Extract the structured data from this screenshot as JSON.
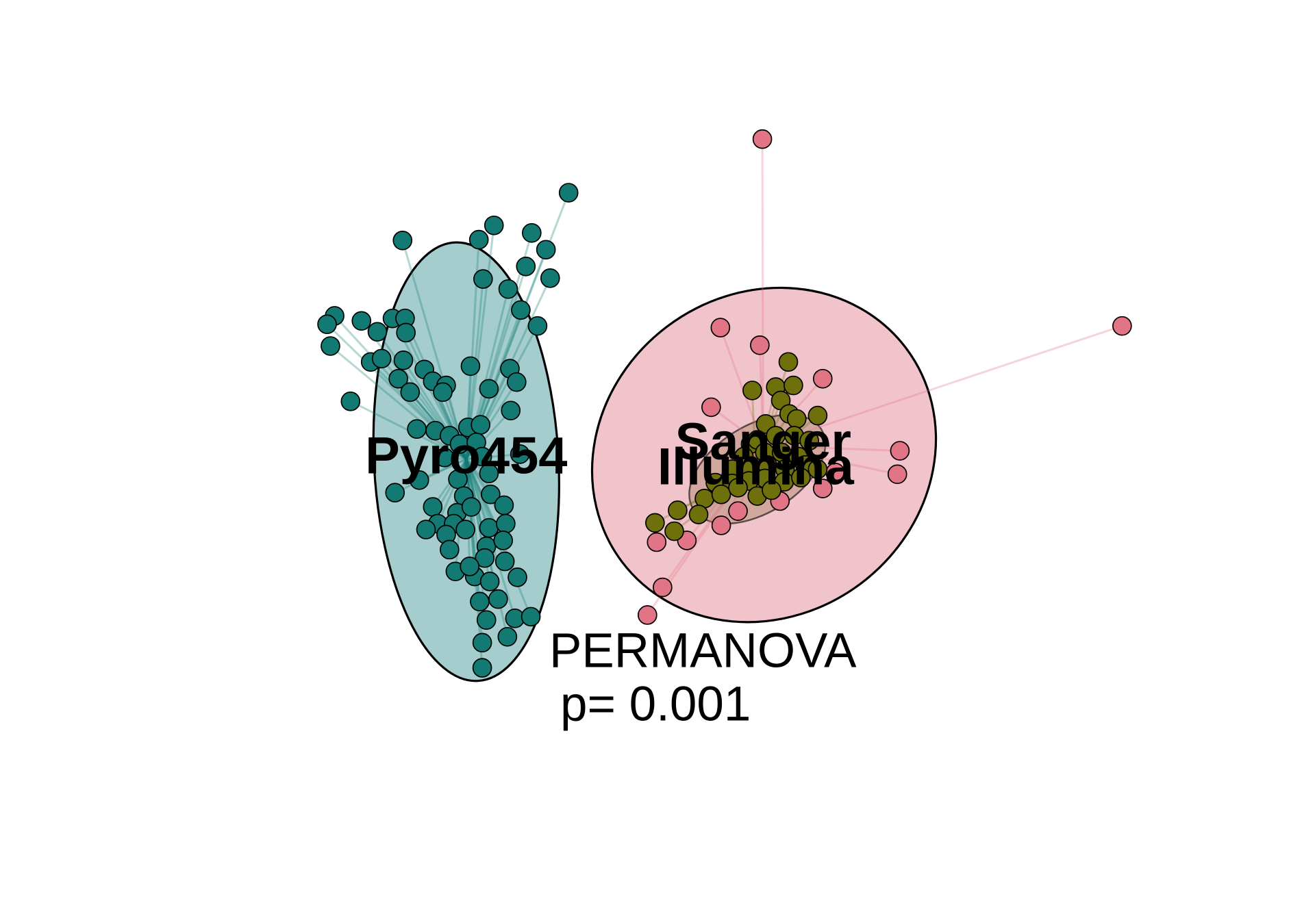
{
  "chart_data": {
    "type": "scatter",
    "title": "",
    "xlabel": "",
    "ylabel": "",
    "annotation": {
      "line1": "PERMANOVA",
      "line2": "p= 0.001"
    },
    "xlim": [
      0,
      1568
    ],
    "ylim": [
      1098,
      0
    ],
    "series": [
      {
        "name": "Pyro454",
        "color": "#127A73",
        "fill": "#8CBFBF",
        "centroid": [
          556,
          548
        ],
        "ellipse": {
          "cx": 556,
          "cy": 551,
          "rx": 110,
          "ry": 262,
          "angle": -3
        },
        "points": [
          [
            678,
            230
          ],
          [
            589,
            269
          ],
          [
            571,
            286
          ],
          [
            634,
            278
          ],
          [
            651,
            298
          ],
          [
            480,
            287
          ],
          [
            627,
            318
          ],
          [
            656,
            332
          ],
          [
            576,
            333
          ],
          [
            606,
            345
          ],
          [
            621,
            370
          ],
          [
            641,
            389
          ],
          [
            399,
            377
          ],
          [
            390,
            387
          ],
          [
            431,
            383
          ],
          [
            468,
            380
          ],
          [
            483,
            380
          ],
          [
            450,
            396
          ],
          [
            484,
            397
          ],
          [
            394,
            413
          ],
          [
            442,
            432
          ],
          [
            455,
            428
          ],
          [
            481,
            430
          ],
          [
            506,
            441
          ],
          [
            561,
            437
          ],
          [
            608,
            440
          ],
          [
            475,
            452
          ],
          [
            516,
            455
          ],
          [
            532,
            460
          ],
          [
            616,
            456
          ],
          [
            489,
            468
          ],
          [
            528,
            468
          ],
          [
            583,
            464
          ],
          [
            418,
            479
          ],
          [
            609,
            490
          ],
          [
            519,
            514
          ],
          [
            558,
            510
          ],
          [
            573,
            507
          ],
          [
            497,
            512
          ],
          [
            536,
            520
          ],
          [
            548,
            530
          ],
          [
            568,
            528
          ],
          [
            530,
            546
          ],
          [
            575,
            545
          ],
          [
            620,
            542
          ],
          [
            546,
            572
          ],
          [
            583,
            565
          ],
          [
            500,
            573
          ],
          [
            471,
            588
          ],
          [
            553,
            592
          ],
          [
            585,
            590
          ],
          [
            516,
            605
          ],
          [
            545,
            612
          ],
          [
            562,
            605
          ],
          [
            601,
            603
          ],
          [
            522,
            625
          ],
          [
            541,
            625
          ],
          [
            583,
            630
          ],
          [
            603,
            625
          ],
          [
            508,
            632
          ],
          [
            532,
            638
          ],
          [
            555,
            632
          ],
          [
            580,
            652
          ],
          [
            600,
            645
          ],
          [
            536,
            656
          ],
          [
            578,
            666
          ],
          [
            602,
            670
          ],
          [
            543,
            682
          ],
          [
            566,
            688
          ],
          [
            584,
            694
          ],
          [
            617,
            689
          ],
          [
            560,
            676
          ],
          [
            572,
            718
          ],
          [
            594,
            715
          ],
          [
            614,
            738
          ],
          [
            633,
            736
          ],
          [
            580,
            740
          ],
          [
            605,
            760
          ],
          [
            575,
            767
          ],
          [
            575,
            797
          ]
        ]
      },
      {
        "name": "Sanger",
        "color": "#E17586",
        "fill": "#EEB9C2",
        "centroid": [
          910,
          532
        ],
        "ellipse": {
          "cx": 911,
          "cy": 543,
          "rx": 212,
          "ry": 192,
          "angle": -37
        },
        "points": [
          [
            909,
            166
          ],
          [
            1338,
            389
          ],
          [
            859,
            391
          ],
          [
            906,
            412
          ],
          [
            981,
            452
          ],
          [
            848,
            486
          ],
          [
            1073,
            538
          ],
          [
            1070,
            566
          ],
          [
            996,
            564
          ],
          [
            981,
            583
          ],
          [
            930,
            598
          ],
          [
            880,
            610
          ],
          [
            860,
            627
          ],
          [
            783,
            647
          ],
          [
            819,
            645
          ],
          [
            790,
            701
          ],
          [
            772,
            734
          ]
        ]
      },
      {
        "name": "Illumina",
        "color": "#6E700C",
        "fill": "#B68F7A",
        "centroid": [
          901,
          560
        ],
        "ellipse": {
          "cx": 903,
          "cy": 560,
          "rx": 90,
          "ry": 52,
          "angle": -32
        },
        "points": [
          [
            940,
            432
          ],
          [
            897,
            466
          ],
          [
            925,
            462
          ],
          [
            946,
            460
          ],
          [
            931,
            478
          ],
          [
            941,
            494
          ],
          [
            975,
            496
          ],
          [
            913,
            506
          ],
          [
            950,
            500
          ],
          [
            895,
            530
          ],
          [
            903,
            525
          ],
          [
            925,
            520
          ],
          [
            947,
            520
          ],
          [
            965,
            526
          ],
          [
            887,
            545
          ],
          [
            912,
            540
          ],
          [
            932,
            540
          ],
          [
            952,
            545
          ],
          [
            873,
            560
          ],
          [
            895,
            560
          ],
          [
            915,
            555
          ],
          [
            936,
            560
          ],
          [
            960,
            555
          ],
          [
            975,
            560
          ],
          [
            853,
            576
          ],
          [
            873,
            577
          ],
          [
            893,
            574
          ],
          [
            912,
            571
          ],
          [
            935,
            575
          ],
          [
            955,
            570
          ],
          [
            840,
            595
          ],
          [
            860,
            590
          ],
          [
            880,
            582
          ],
          [
            903,
            592
          ],
          [
            920,
            585
          ],
          [
            808,
            609
          ],
          [
            833,
            614
          ],
          [
            781,
            624
          ],
          [
            804,
            634
          ]
        ]
      }
    ],
    "legend": "none",
    "grid": false
  }
}
